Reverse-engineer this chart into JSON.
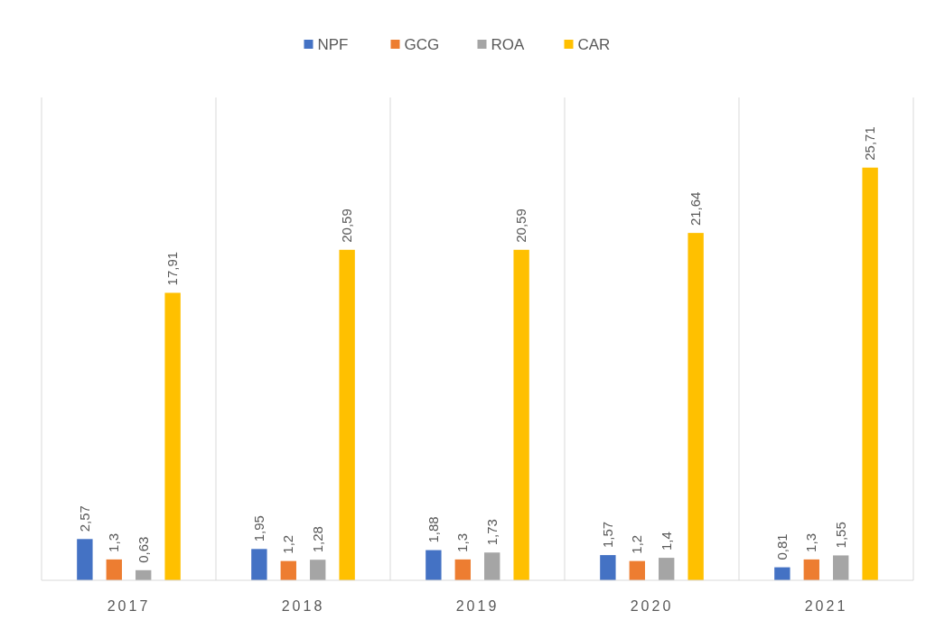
{
  "chart_data": {
    "type": "bar",
    "categories": [
      "2017",
      "2018",
      "2019",
      "2020",
      "2021"
    ],
    "series": [
      {
        "name": "NPF",
        "color": "#4472c4",
        "values": [
          2.57,
          1.95,
          1.88,
          1.57,
          0.81
        ],
        "value_labels": [
          "2,57",
          "1,95",
          "1,88",
          "1,57",
          "0,81"
        ]
      },
      {
        "name": "GCG",
        "color": "#ed7d31",
        "values": [
          1.3,
          1.2,
          1.3,
          1.2,
          1.3
        ],
        "value_labels": [
          "1,3",
          "1,2",
          "1,3",
          "1,2",
          "1,3"
        ]
      },
      {
        "name": "ROA",
        "color": "#a5a5a5",
        "values": [
          0.63,
          1.28,
          1.73,
          1.4,
          1.55
        ],
        "value_labels": [
          "0,63",
          "1,28",
          "1,73",
          "1,4",
          "1,55"
        ]
      },
      {
        "name": "CAR",
        "color": "#ffc000",
        "values": [
          17.91,
          20.59,
          20.59,
          21.64,
          25.71
        ],
        "value_labels": [
          "17,91",
          "20,59",
          "20,59",
          "21,64",
          "25,71"
        ]
      }
    ],
    "grid": "x",
    "legend": "top"
  }
}
